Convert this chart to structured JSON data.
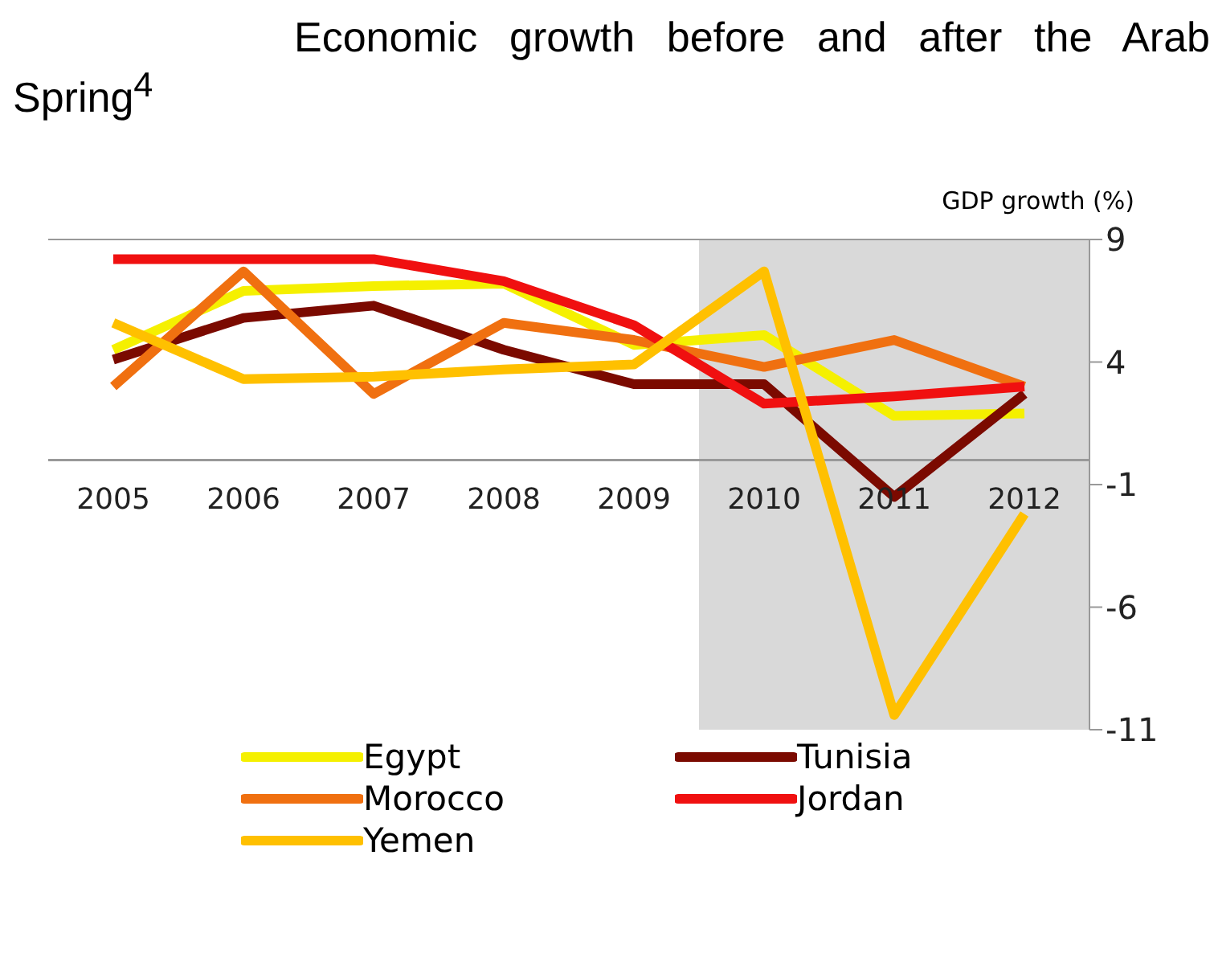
{
  "chart_data": {
    "type": "line",
    "title": "Economic growth before and after the Arab Spring$^{4}$",
    "ylabel": "GDP growth (%)",
    "categories": [
      "2005",
      "2006",
      "2007",
      "2008",
      "2009",
      "2010",
      "2011",
      "2012"
    ],
    "series": [
      {
        "name": "Egypt",
        "color": "#f5f000",
        "values": [
          4.5,
          6.9,
          7.1,
          7.2,
          4.7,
          5.1,
          1.8,
          1.9
        ]
      },
      {
        "name": "Tunisia",
        "color": "#7b0a00",
        "values": [
          4.1,
          5.8,
          6.3,
          4.5,
          3.1,
          3.1,
          -1.5,
          2.7
        ]
      },
      {
        "name": "Morocco",
        "color": "#f07010",
        "values": [
          3.0,
          7.7,
          2.7,
          5.6,
          4.9,
          3.8,
          4.9,
          3.0
        ]
      },
      {
        "name": "Jordan",
        "color": "#f01010",
        "values": [
          8.2,
          8.2,
          8.2,
          7.3,
          5.5,
          2.3,
          2.6,
          3.0
        ]
      },
      {
        "name": "Yemen",
        "color": "#ffc000",
        "values": [
          5.6,
          3.3,
          3.4,
          3.7,
          3.9,
          7.7,
          -10.4,
          -2.2
        ]
      }
    ],
    "ylim": [
      -11,
      9
    ],
    "yticks": [
      9,
      4,
      -1,
      -6,
      -11
    ],
    "bands": [
      {
        "axis": "x",
        "from": "2010",
        "to": "2012",
        "color": "#d9d9d9"
      }
    ],
    "legend": "bottom",
    "marker": "none",
    "line_style": "solid"
  }
}
